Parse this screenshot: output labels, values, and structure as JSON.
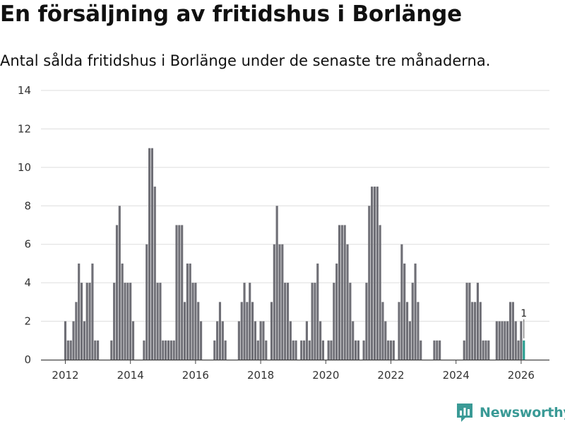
{
  "header": {
    "title": "En försäljning av fritidshus i Borlänge",
    "subtitle": "Antal sålda fritidshus i Borlänge under de senaste tre månaderna."
  },
  "brand": {
    "name": "Newsworthy",
    "color": "#3a9a96"
  },
  "colors": {
    "bar": "#6f6f76",
    "highlight": "#2a9d8f",
    "grid": "#dddddd",
    "axis": "#444444"
  },
  "chart_data": {
    "type": "bar",
    "title": "En försäljning av fritidshus i Borlänge",
    "xlabel": "",
    "ylabel": "",
    "ylim": [
      0,
      14
    ],
    "yticks": [
      0,
      2,
      4,
      6,
      8,
      10,
      12,
      14
    ],
    "xticks": [
      "2012",
      "2014",
      "2016",
      "2018",
      "2020",
      "2022",
      "2024",
      "2026"
    ],
    "start_year": 2012,
    "start_month": 1,
    "grid": true,
    "values": [
      2,
      1,
      1,
      2,
      3,
      5,
      4,
      2,
      4,
      4,
      5,
      1,
      1,
      0,
      0,
      0,
      0,
      1,
      4,
      7,
      8,
      5,
      4,
      4,
      4,
      2,
      0,
      0,
      0,
      1,
      6,
      11,
      11,
      9,
      4,
      4,
      1,
      1,
      1,
      1,
      1,
      7,
      7,
      7,
      3,
      5,
      5,
      4,
      4,
      3,
      2,
      0,
      0,
      0,
      0,
      1,
      2,
      3,
      2,
      1,
      0,
      0,
      0,
      0,
      2,
      3,
      4,
      3,
      4,
      3,
      2,
      1,
      2,
      2,
      1,
      0,
      3,
      6,
      8,
      6,
      6,
      4,
      4,
      2,
      1,
      1,
      0,
      1,
      1,
      2,
      1,
      4,
      4,
      5,
      2,
      1,
      0,
      1,
      1,
      4,
      5,
      7,
      7,
      7,
      6,
      4,
      2,
      1,
      1,
      0,
      1,
      4,
      8,
      9,
      9,
      9,
      7,
      3,
      2,
      1,
      1,
      1,
      0,
      3,
      6,
      5,
      3,
      2,
      4,
      5,
      3,
      1,
      0,
      0,
      0,
      0,
      1,
      1,
      1,
      0,
      0,
      0,
      0,
      0,
      0,
      0,
      0,
      1,
      4,
      4,
      3,
      3,
      4,
      3,
      1,
      1,
      1,
      0,
      0,
      2,
      2,
      2,
      2,
      2,
      3,
      3,
      2,
      1,
      2,
      1
    ],
    "highlight_last": true,
    "annotation": {
      "value": "1"
    }
  }
}
